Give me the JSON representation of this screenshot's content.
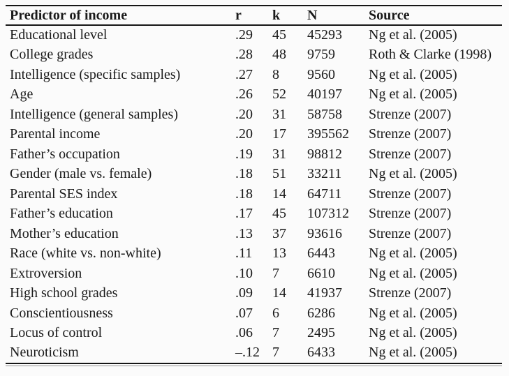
{
  "table": {
    "columns": [
      {
        "key": "predictor",
        "label": "Predictor of income"
      },
      {
        "key": "r",
        "label": "r"
      },
      {
        "key": "k",
        "label": "k"
      },
      {
        "key": "n",
        "label": "N"
      },
      {
        "key": "source",
        "label": "Source"
      }
    ],
    "rows": [
      {
        "predictor": "Educational level",
        "r": ".29",
        "k": "45",
        "n": "45293",
        "source": "Ng et al. (2005)"
      },
      {
        "predictor": "College grades",
        "r": ".28",
        "k": "48",
        "n": "9759",
        "source": "Roth & Clarke (1998)"
      },
      {
        "predictor": "Intelligence (specific samples)",
        "r": ".27",
        "k": "8",
        "n": "9560",
        "source": "Ng et al. (2005)"
      },
      {
        "predictor": "Age",
        "r": ".26",
        "k": "52",
        "n": "40197",
        "source": "Ng et al. (2005)"
      },
      {
        "predictor": "Intelligence (general samples)",
        "r": ".20",
        "k": "31",
        "n": "58758",
        "source": "Strenze (2007)"
      },
      {
        "predictor": "Parental income",
        "r": ".20",
        "k": "17",
        "n": "395562",
        "source": "Strenze (2007)"
      },
      {
        "predictor": "Father’s occupation",
        "r": ".19",
        "k": "31",
        "n": "98812",
        "source": "Strenze (2007)"
      },
      {
        "predictor": "Gender (male vs. female)",
        "r": ".18",
        "k": "51",
        "n": "33211",
        "source": "Ng et al. (2005)"
      },
      {
        "predictor": "Parental SES index",
        "r": ".18",
        "k": "14",
        "n": "64711",
        "source": "Strenze (2007)"
      },
      {
        "predictor": "Father’s education",
        "r": ".17",
        "k": "45",
        "n": "107312",
        "source": "Strenze (2007)"
      },
      {
        "predictor": "Mother’s education",
        "r": ".13",
        "k": "37",
        "n": "93616",
        "source": "Strenze (2007)"
      },
      {
        "predictor": "Race (white vs. non-white)",
        "r": ".11",
        "k": "13",
        "n": "6443",
        "source": "Ng et al. (2005)"
      },
      {
        "predictor": "Extroversion",
        "r": ".10",
        "k": "7",
        "n": "6610",
        "source": "Ng et al. (2005)"
      },
      {
        "predictor": "High school grades",
        "r": ".09",
        "k": "14",
        "n": "41937",
        "source": "Strenze (2007)"
      },
      {
        "predictor": "Conscientiousness",
        "r": ".07",
        "k": "6",
        "n": "6286",
        "source": "Ng et al. (2005)"
      },
      {
        "predictor": "Locus of control",
        "r": ".06",
        "k": "7",
        "n": "2495",
        "source": "Ng et al. (2005)"
      },
      {
        "predictor": "Neuroticism",
        "r": "–.12",
        "k": "7",
        "n": "6433",
        "source": "Ng et al. (2005)"
      }
    ]
  },
  "colors": {
    "background": "#fbfbfb",
    "text": "#1a1a1a",
    "rule_dark": "#161616",
    "rule_thin": "#8f8f8f"
  }
}
